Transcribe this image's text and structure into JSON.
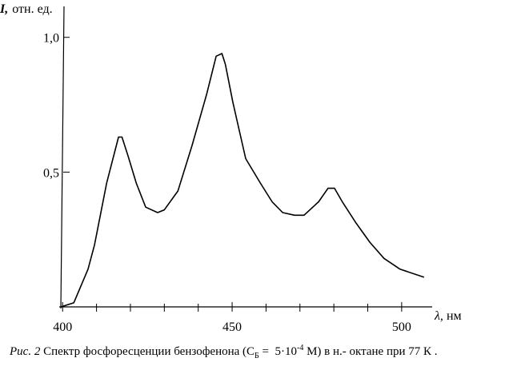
{
  "chart_data": {
    "type": "line",
    "ylabel": {
      "symbol": "I,",
      "unit": "отн. ед."
    },
    "xlabel": {
      "symbol": "λ,",
      "unit": "нм"
    },
    "caption": [
      "Рис. 2",
      " Спектр фосфоресценции бензофенона (С",
      "Б",
      " =  5·10",
      "-4",
      " М) в н.- октане при 77 К ."
    ],
    "x": [
      399.5,
      403.3,
      407.5,
      409.4,
      413,
      416.5,
      417.5,
      419.3,
      421.7,
      424.5,
      428,
      430,
      434,
      438.2,
      442.5,
      445.3,
      447,
      448,
      450.2,
      454,
      458.3,
      461.8,
      464.9,
      468.4,
      471.2,
      475.5,
      478.3,
      480.2,
      482.5,
      486.6,
      490.6,
      494.8,
      499.5,
      506.6
    ],
    "y": [
      0,
      0.015,
      0.14,
      0.23,
      0.46,
      0.63,
      0.63,
      0.56,
      0.46,
      0.37,
      0.35,
      0.36,
      0.43,
      0.6,
      0.79,
      0.93,
      0.94,
      0.9,
      0.76,
      0.55,
      0.46,
      0.39,
      0.35,
      0.34,
      0.34,
      0.39,
      0.44,
      0.44,
      0.39,
      0.31,
      0.24,
      0.18,
      0.14,
      0.11
    ],
    "color": "#000000",
    "xlim": [
      399,
      509
    ],
    "ylim": [
      0,
      1.1
    ],
    "xticks": [
      400,
      450,
      500
    ],
    "xminorticks": [
      410,
      420,
      430,
      440,
      460,
      470,
      480,
      490
    ],
    "yticks": [
      {
        "value": 0.5,
        "label": "0,5"
      },
      {
        "value": 1.0,
        "label": "1,0"
      }
    ],
    "grid": false
  }
}
